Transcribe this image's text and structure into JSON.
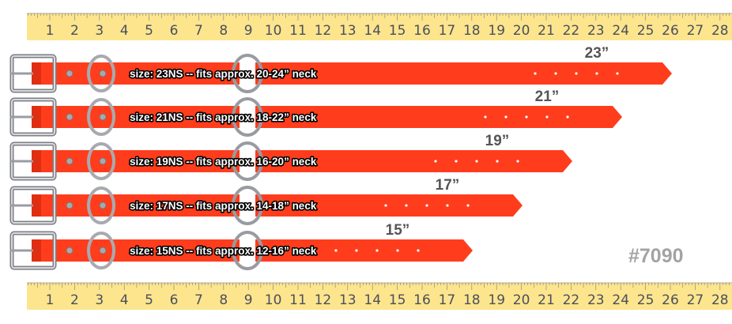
{
  "ruler": {
    "numbers": [
      "1",
      "2",
      "3",
      "4",
      "5",
      "6",
      "7",
      "8",
      "9",
      "10",
      "11",
      "12",
      "13",
      "14",
      "15",
      "16",
      "17",
      "18",
      "19",
      "20",
      "21",
      "22",
      "23",
      "24",
      "25",
      "26",
      "27",
      "28"
    ],
    "color": "#fde58e"
  },
  "collar_color": "#ff3d1c",
  "collars": [
    {
      "size_label": "size: 23NS -- fits approx. 20-24” neck",
      "length_label": "23”",
      "length_in": 23
    },
    {
      "size_label": "size: 21NS -- fits approx. 18-22” neck",
      "length_label": "21”",
      "length_in": 21
    },
    {
      "size_label": "size: 19NS -- fits approx. 16-20” neck",
      "length_label": "19”",
      "length_in": 19
    },
    {
      "size_label": "size: 17NS -- fits approx. 14-18” neck",
      "length_label": "17”",
      "length_in": 17
    },
    {
      "size_label": "size: 15NS -- fits approx. 12-16” neck",
      "length_label": "15”",
      "length_in": 15
    }
  ],
  "product_number": "#7090"
}
